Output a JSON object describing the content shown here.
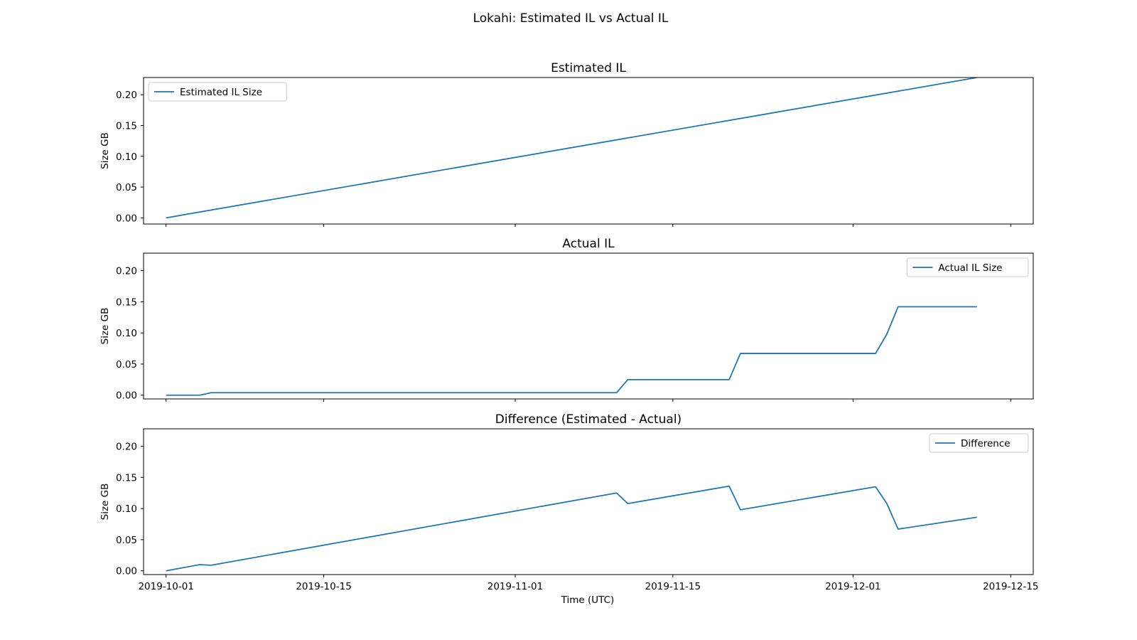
{
  "figure": {
    "title": "Lokahi: Estimated IL vs Actual IL",
    "xlabel": "Time (UTC)"
  },
  "line_color": "#1f77b4",
  "chart_data": [
    {
      "type": "line",
      "title": "Estimated IL",
      "ylabel": "Size GB",
      "xlim": [
        "2019-09-29",
        "2019-12-17"
      ],
      "ylim": [
        -0.01,
        0.228
      ],
      "yticks": [
        0.0,
        0.05,
        0.1,
        0.15,
        0.2
      ],
      "ytick_labels": [
        "0.00",
        "0.05",
        "0.10",
        "0.15",
        "0.20"
      ],
      "xticks": [
        "2019-10-01",
        "2019-10-15",
        "2019-11-01",
        "2019-11-15",
        "2019-12-01",
        "2019-12-15"
      ],
      "show_xtick_labels": false,
      "grid": false,
      "legend_position": "top-left",
      "series": [
        {
          "name": "Estimated IL Size",
          "x": [
            "2019-10-01",
            "2019-12-12"
          ],
          "y": [
            0.0,
            0.228
          ]
        }
      ]
    },
    {
      "type": "line",
      "title": "Actual IL",
      "ylabel": "Size GB",
      "xlim": [
        "2019-09-29",
        "2019-12-17"
      ],
      "ylim": [
        -0.006,
        0.228
      ],
      "yticks": [
        0.0,
        0.05,
        0.1,
        0.15,
        0.2
      ],
      "ytick_labels": [
        "0.00",
        "0.05",
        "0.10",
        "0.15",
        "0.20"
      ],
      "xticks": [
        "2019-10-01",
        "2019-10-15",
        "2019-11-01",
        "2019-11-15",
        "2019-12-01",
        "2019-12-15"
      ],
      "show_xtick_labels": false,
      "grid": false,
      "legend_position": "top-right",
      "series": [
        {
          "name": "Actual IL Size",
          "x": [
            "2019-10-01",
            "2019-10-04",
            "2019-10-05",
            "2019-11-10",
            "2019-11-11",
            "2019-11-20",
            "2019-11-21",
            "2019-12-03",
            "2019-12-04",
            "2019-12-05",
            "2019-12-12"
          ],
          "y": [
            0.0,
            0.0,
            0.004,
            0.004,
            0.025,
            0.025,
            0.067,
            0.067,
            0.098,
            0.142,
            0.142
          ]
        }
      ]
    },
    {
      "type": "line",
      "title": "Difference (Estimated - Actual)",
      "ylabel": "Size GB",
      "xlim": [
        "2019-09-29",
        "2019-12-17"
      ],
      "ylim": [
        -0.006,
        0.228
      ],
      "yticks": [
        0.0,
        0.05,
        0.1,
        0.15,
        0.2
      ],
      "ytick_labels": [
        "0.00",
        "0.05",
        "0.10",
        "0.15",
        "0.20"
      ],
      "xticks": [
        "2019-10-01",
        "2019-10-15",
        "2019-11-01",
        "2019-11-15",
        "2019-12-01",
        "2019-12-15"
      ],
      "xtick_labels": [
        "2019-10-01",
        "2019-10-15",
        "2019-11-01",
        "2019-11-15",
        "2019-12-01",
        "2019-12-15"
      ],
      "show_xtick_labels": true,
      "grid": false,
      "legend_position": "top-right",
      "series": [
        {
          "name": "Difference",
          "x": [
            "2019-10-01",
            "2019-10-04",
            "2019-10-05",
            "2019-11-10",
            "2019-11-11",
            "2019-11-20",
            "2019-11-21",
            "2019-12-03",
            "2019-12-04",
            "2019-12-05",
            "2019-12-12"
          ],
          "y": [
            0.0,
            0.01,
            0.009,
            0.125,
            0.108,
            0.136,
            0.098,
            0.135,
            0.108,
            0.067,
            0.086
          ]
        }
      ]
    }
  ]
}
